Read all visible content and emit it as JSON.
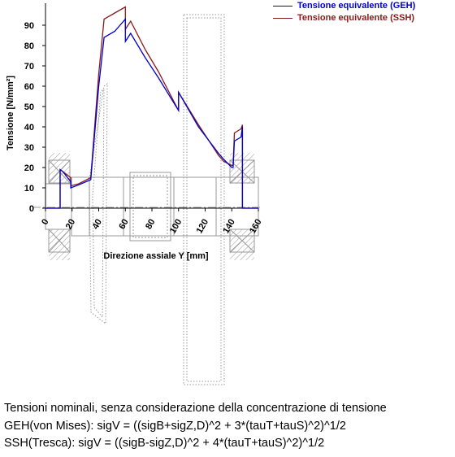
{
  "chart_data": {
    "type": "line",
    "ylabel": "Tensione [N/mm²]",
    "xlabel": "Direzione assiale Y [mm]",
    "xlim": [
      0,
      160
    ],
    "ylim": [
      0,
      100
    ],
    "yticks": [
      0,
      10,
      20,
      30,
      40,
      50,
      60,
      70,
      80,
      90
    ],
    "xticks": [
      0,
      20,
      40,
      60,
      80,
      100,
      120,
      140,
      160
    ],
    "grid": false,
    "legend_position": "top-right",
    "series": [
      {
        "name": "Tensione equivalente (GEH)",
        "color": "#0000cc",
        "x": [
          0,
          11,
          11,
          13,
          19,
          19,
          25,
          34,
          40,
          44,
          52,
          60,
          60,
          64,
          75,
          85,
          100,
          100,
          115,
          130,
          134,
          140,
          141,
          142,
          147,
          148,
          148,
          160
        ],
        "y": [
          0,
          0,
          19,
          18,
          13,
          10,
          11.5,
          14,
          60,
          84,
          87,
          93,
          82,
          86,
          74,
          64,
          48,
          57,
          40,
          27,
          24,
          20,
          20,
          33,
          35,
          40,
          0,
          0
        ]
      },
      {
        "name": "Tensione equivalente (SSH)",
        "color": "#8b1a1a",
        "x": [
          0,
          11,
          11,
          13,
          19,
          19,
          25,
          34,
          40,
          44,
          52,
          60,
          60,
          64,
          75,
          85,
          100,
          100,
          115,
          130,
          134,
          140,
          141,
          142,
          147,
          148,
          148,
          160
        ],
        "y": [
          0,
          0,
          19,
          18,
          15,
          11,
          12,
          15,
          66,
          93,
          96,
          99,
          88,
          92,
          78,
          67,
          48,
          57,
          41,
          26,
          23,
          21,
          21,
          37,
          39,
          41,
          0,
          0
        ]
      }
    ]
  },
  "caption": {
    "line1": "Tensioni nominali, senza considerazione della concentrazione di tensione",
    "line2": "GEH(von Mises): sigV = ((sigB+sigZ,D)^2 + 3*(tauT+tauS)^2)^1/2",
    "line3": "SSH(Tresca): sigV = ((sigB-sigZ,D)^2 + 4*(tauT+tauS)^2)^1/2"
  }
}
